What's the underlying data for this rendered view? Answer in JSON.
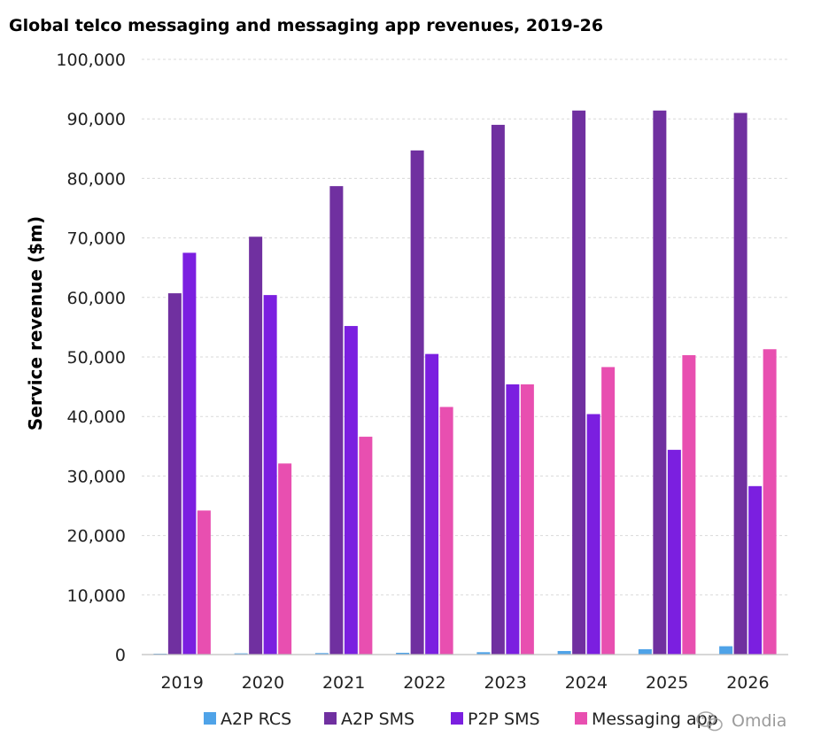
{
  "chart_data": {
    "type": "bar",
    "title": "Global telco messaging and messaging app revenues, 2019-26",
    "xlabel": "",
    "ylabel": "Service revenue ($m)",
    "ylim": [
      0,
      100000
    ],
    "yticks": [
      0,
      10000,
      20000,
      30000,
      40000,
      50000,
      60000,
      70000,
      80000,
      90000,
      100000
    ],
    "ytick_labels": [
      "0",
      "10,000",
      "20,000",
      "30,000",
      "40,000",
      "50,000",
      "60,000",
      "70,000",
      "80,000",
      "90,000",
      "100,000"
    ],
    "grid": true,
    "legend_position": "bottom",
    "categories": [
      "2019",
      "2020",
      "2021",
      "2022",
      "2023",
      "2024",
      "2025",
      "2026"
    ],
    "series": [
      {
        "name": "A2P RCS",
        "color": "#4fa3e8",
        "values": [
          150,
          200,
          250,
          300,
          400,
          600,
          900,
          1400
        ]
      },
      {
        "name": "A2P SMS",
        "color": "#7030a0",
        "values": [
          60700,
          70200,
          78700,
          84700,
          89000,
          91400,
          91400,
          91000
        ]
      },
      {
        "name": "P2P SMS",
        "color": "#7b1fe0",
        "values": [
          67500,
          60400,
          55200,
          50500,
          45400,
          40400,
          34400,
          28300
        ]
      },
      {
        "name": "Messaging app",
        "color": "#e84fb0",
        "values": [
          24200,
          32100,
          36600,
          41600,
          45400,
          48300,
          50300,
          51300
        ]
      }
    ]
  },
  "watermark": {
    "text": "Omdia",
    "icon": "wechat-icon"
  }
}
